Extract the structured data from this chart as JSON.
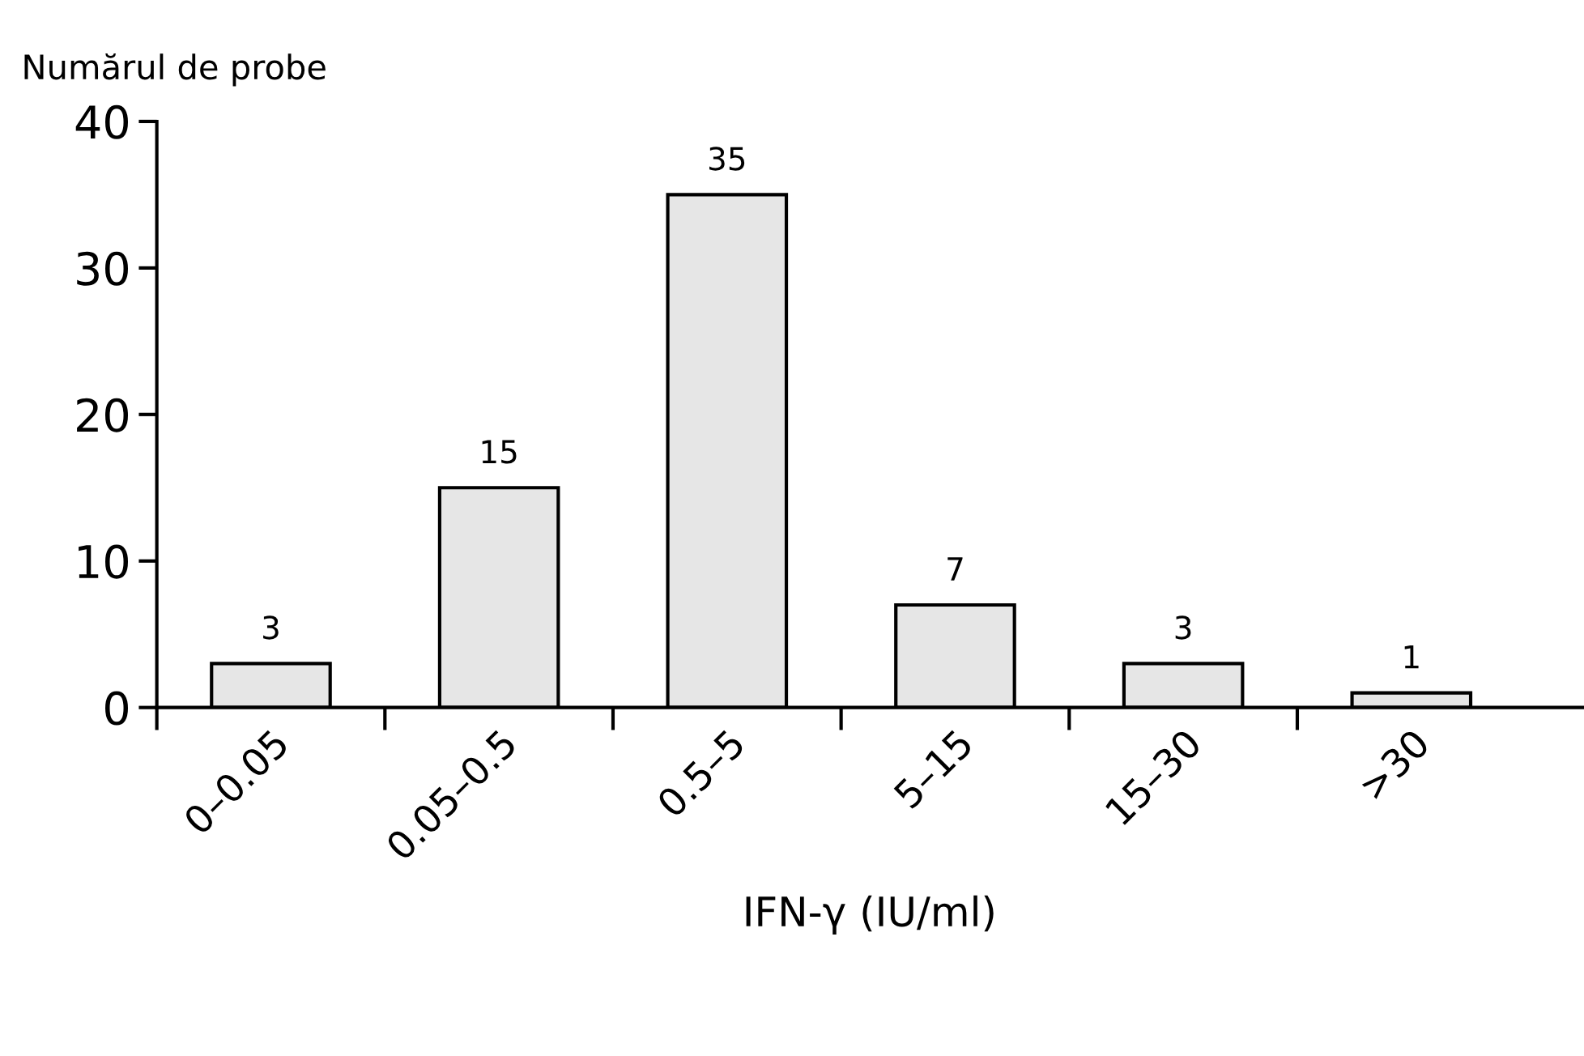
{
  "chart_data": {
    "type": "bar",
    "ylabel": "Numărul de probe",
    "xlabel": "IFN-γ (IU/ml)",
    "categories": [
      "0–0.05",
      "0.05–0.5",
      "0.5–5",
      "5–15",
      "15–30",
      ">30"
    ],
    "values": [
      3,
      15,
      35,
      7,
      3,
      1
    ],
    "color": "#e6e6e6",
    "ylim": [
      0,
      40
    ],
    "yticks": [
      0,
      10,
      20,
      30,
      40
    ],
    "grid": false,
    "data_labels": true
  }
}
